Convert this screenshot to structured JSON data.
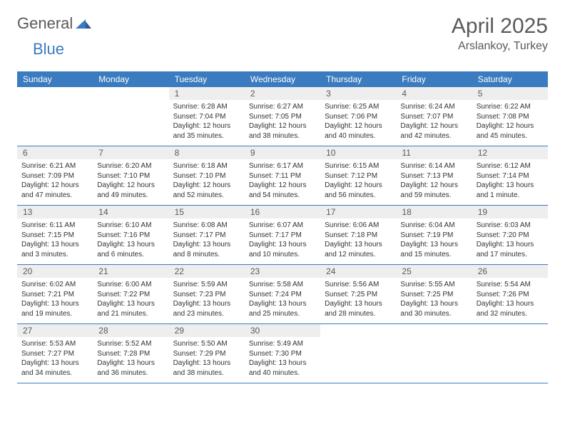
{
  "logo": {
    "general": "General",
    "blue": "Blue"
  },
  "title": "April 2025",
  "location": "Arslankoy, Turkey",
  "colors": {
    "header_bg": "#3b7bbf",
    "header_text": "#ffffff",
    "daynum_bg": "#eeeeee",
    "daynum_text": "#5a5a5a",
    "body_text": "#333333",
    "divider": "#3b7bbf"
  },
  "weekdays": [
    "Sunday",
    "Monday",
    "Tuesday",
    "Wednesday",
    "Thursday",
    "Friday",
    "Saturday"
  ],
  "layout": {
    "first_weekday_index": 2,
    "days_in_month": 30
  },
  "days": {
    "1": {
      "sunrise": "6:28 AM",
      "sunset": "7:04 PM",
      "daylight": "12 hours and 35 minutes."
    },
    "2": {
      "sunrise": "6:27 AM",
      "sunset": "7:05 PM",
      "daylight": "12 hours and 38 minutes."
    },
    "3": {
      "sunrise": "6:25 AM",
      "sunset": "7:06 PM",
      "daylight": "12 hours and 40 minutes."
    },
    "4": {
      "sunrise": "6:24 AM",
      "sunset": "7:07 PM",
      "daylight": "12 hours and 42 minutes."
    },
    "5": {
      "sunrise": "6:22 AM",
      "sunset": "7:08 PM",
      "daylight": "12 hours and 45 minutes."
    },
    "6": {
      "sunrise": "6:21 AM",
      "sunset": "7:09 PM",
      "daylight": "12 hours and 47 minutes."
    },
    "7": {
      "sunrise": "6:20 AM",
      "sunset": "7:10 PM",
      "daylight": "12 hours and 49 minutes."
    },
    "8": {
      "sunrise": "6:18 AM",
      "sunset": "7:10 PM",
      "daylight": "12 hours and 52 minutes."
    },
    "9": {
      "sunrise": "6:17 AM",
      "sunset": "7:11 PM",
      "daylight": "12 hours and 54 minutes."
    },
    "10": {
      "sunrise": "6:15 AM",
      "sunset": "7:12 PM",
      "daylight": "12 hours and 56 minutes."
    },
    "11": {
      "sunrise": "6:14 AM",
      "sunset": "7:13 PM",
      "daylight": "12 hours and 59 minutes."
    },
    "12": {
      "sunrise": "6:12 AM",
      "sunset": "7:14 PM",
      "daylight": "13 hours and 1 minute."
    },
    "13": {
      "sunrise": "6:11 AM",
      "sunset": "7:15 PM",
      "daylight": "13 hours and 3 minutes."
    },
    "14": {
      "sunrise": "6:10 AM",
      "sunset": "7:16 PM",
      "daylight": "13 hours and 6 minutes."
    },
    "15": {
      "sunrise": "6:08 AM",
      "sunset": "7:17 PM",
      "daylight": "13 hours and 8 minutes."
    },
    "16": {
      "sunrise": "6:07 AM",
      "sunset": "7:17 PM",
      "daylight": "13 hours and 10 minutes."
    },
    "17": {
      "sunrise": "6:06 AM",
      "sunset": "7:18 PM",
      "daylight": "13 hours and 12 minutes."
    },
    "18": {
      "sunrise": "6:04 AM",
      "sunset": "7:19 PM",
      "daylight": "13 hours and 15 minutes."
    },
    "19": {
      "sunrise": "6:03 AM",
      "sunset": "7:20 PM",
      "daylight": "13 hours and 17 minutes."
    },
    "20": {
      "sunrise": "6:02 AM",
      "sunset": "7:21 PM",
      "daylight": "13 hours and 19 minutes."
    },
    "21": {
      "sunrise": "6:00 AM",
      "sunset": "7:22 PM",
      "daylight": "13 hours and 21 minutes."
    },
    "22": {
      "sunrise": "5:59 AM",
      "sunset": "7:23 PM",
      "daylight": "13 hours and 23 minutes."
    },
    "23": {
      "sunrise": "5:58 AM",
      "sunset": "7:24 PM",
      "daylight": "13 hours and 25 minutes."
    },
    "24": {
      "sunrise": "5:56 AM",
      "sunset": "7:25 PM",
      "daylight": "13 hours and 28 minutes."
    },
    "25": {
      "sunrise": "5:55 AM",
      "sunset": "7:25 PM",
      "daylight": "13 hours and 30 minutes."
    },
    "26": {
      "sunrise": "5:54 AM",
      "sunset": "7:26 PM",
      "daylight": "13 hours and 32 minutes."
    },
    "27": {
      "sunrise": "5:53 AM",
      "sunset": "7:27 PM",
      "daylight": "13 hours and 34 minutes."
    },
    "28": {
      "sunrise": "5:52 AM",
      "sunset": "7:28 PM",
      "daylight": "13 hours and 36 minutes."
    },
    "29": {
      "sunrise": "5:50 AM",
      "sunset": "7:29 PM",
      "daylight": "13 hours and 38 minutes."
    },
    "30": {
      "sunrise": "5:49 AM",
      "sunset": "7:30 PM",
      "daylight": "13 hours and 40 minutes."
    }
  },
  "labels": {
    "sunrise": "Sunrise: ",
    "sunset": "Sunset: ",
    "daylight": "Daylight: "
  }
}
